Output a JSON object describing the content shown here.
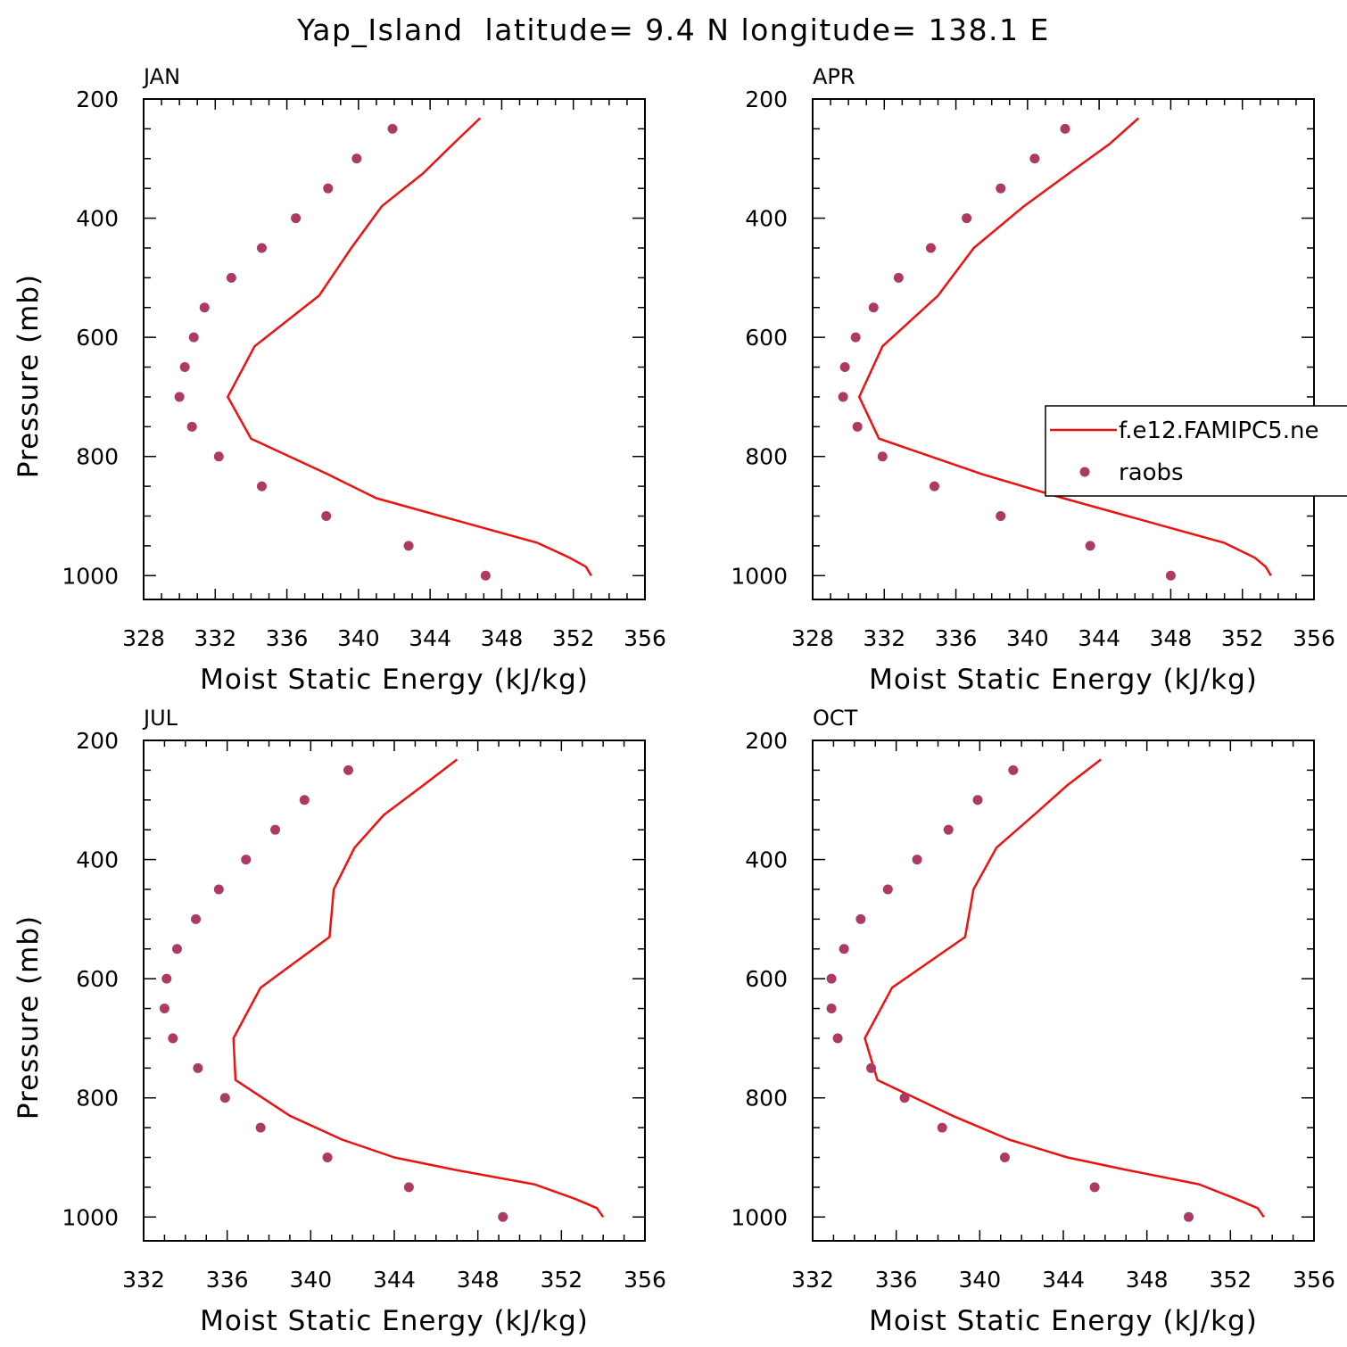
{
  "title": "Yap_Island  latitude= 9.4 N longitude= 138.1 E",
  "legend": {
    "line_label": "f.e12.FAMIPC5.ne",
    "dot_label": "raobs"
  },
  "colors": {
    "model_line": "#ee1111",
    "raobs_dots": "#ac3a64",
    "axis": "#000000"
  },
  "chart_data": [
    {
      "type": "line",
      "label": "JAN",
      "xlabel": "Moist Static Energy (kJ/kg)",
      "ylabel": "Pressure (mb)",
      "xlim": [
        328,
        356
      ],
      "ylim": [
        1040,
        200
      ],
      "xticks": [
        328,
        332,
        336,
        340,
        344,
        348,
        352,
        356
      ],
      "yticks": [
        200,
        400,
        600,
        800,
        1000
      ],
      "model": {
        "p": [
          232,
          275,
          325,
          380,
          450,
          530,
          615,
          700,
          770,
          830,
          870,
          920,
          945,
          970,
          985,
          1000
        ],
        "mse": [
          346.8,
          345.3,
          343.6,
          341.3,
          339.6,
          337.8,
          334.2,
          332.7,
          334.0,
          338.3,
          341.0,
          347.0,
          350.0,
          351.8,
          352.7,
          353.0
        ]
      },
      "raobs": {
        "p": [
          250,
          300,
          350,
          400,
          450,
          500,
          550,
          600,
          650,
          700,
          750,
          800,
          850,
          900,
          950,
          1000
        ],
        "mse": [
          341.9,
          339.9,
          338.3,
          336.5,
          334.6,
          332.9,
          331.4,
          330.8,
          330.3,
          330.0,
          330.7,
          332.2,
          334.6,
          338.2,
          342.8,
          347.1
        ]
      }
    },
    {
      "type": "line",
      "label": "APR",
      "xlabel": "Moist Static Energy (kJ/kg)",
      "ylabel": "",
      "xlim": [
        328,
        356
      ],
      "ylim": [
        1040,
        200
      ],
      "xticks": [
        328,
        332,
        336,
        340,
        344,
        348,
        352,
        356
      ],
      "yticks": [
        200,
        400,
        600,
        800,
        1000
      ],
      "model": {
        "p": [
          232,
          275,
          325,
          380,
          450,
          530,
          615,
          700,
          770,
          830,
          870,
          920,
          945,
          970,
          985,
          1000
        ],
        "mse": [
          346.2,
          344.6,
          342.3,
          339.8,
          337.0,
          335.0,
          331.9,
          330.6,
          331.7,
          337.5,
          342.0,
          348.0,
          351.0,
          352.7,
          353.3,
          353.6
        ]
      },
      "raobs": {
        "p": [
          250,
          300,
          350,
          400,
          450,
          500,
          550,
          600,
          650,
          700,
          750,
          800,
          850,
          900,
          950,
          1000
        ],
        "mse": [
          342.1,
          340.4,
          338.5,
          336.6,
          334.6,
          332.8,
          331.4,
          330.4,
          329.8,
          329.7,
          330.5,
          331.9,
          334.8,
          338.5,
          343.5,
          348.0
        ]
      }
    },
    {
      "type": "line",
      "label": "JUL",
      "xlabel": "Moist Static Energy (kJ/kg)",
      "ylabel": "Pressure (mb)",
      "xlim": [
        332,
        356
      ],
      "ylim": [
        1040,
        200
      ],
      "xticks": [
        332,
        336,
        340,
        344,
        348,
        352,
        356
      ],
      "yticks": [
        200,
        400,
        600,
        800,
        1000
      ],
      "model": {
        "p": [
          232,
          275,
          325,
          380,
          450,
          530,
          615,
          700,
          770,
          830,
          870,
          900,
          920,
          945,
          970,
          985,
          1000
        ],
        "mse": [
          347.0,
          345.4,
          343.5,
          342.1,
          341.1,
          340.9,
          337.6,
          336.3,
          336.4,
          339.0,
          341.5,
          344.0,
          346.8,
          350.7,
          352.7,
          353.7,
          354.0
        ]
      },
      "raobs": {
        "p": [
          250,
          300,
          350,
          400,
          450,
          500,
          550,
          600,
          650,
          700,
          750,
          800,
          850,
          900,
          950,
          1000
        ],
        "mse": [
          341.8,
          339.7,
          338.3,
          336.9,
          335.6,
          334.5,
          333.6,
          333.1,
          333.0,
          333.4,
          334.6,
          335.9,
          337.6,
          340.8,
          344.7,
          349.2
        ]
      }
    },
    {
      "type": "line",
      "label": "OCT",
      "xlabel": "Moist Static Energy (kJ/kg)",
      "ylabel": "",
      "xlim": [
        332,
        356
      ],
      "ylim": [
        1040,
        200
      ],
      "xticks": [
        332,
        336,
        340,
        344,
        348,
        352,
        356
      ],
      "yticks": [
        200,
        400,
        600,
        800,
        1000
      ],
      "model": {
        "p": [
          232,
          275,
          325,
          380,
          450,
          530,
          615,
          700,
          770,
          830,
          870,
          900,
          920,
          945,
          970,
          985,
          1000
        ],
        "mse": [
          345.8,
          344.2,
          342.6,
          340.8,
          339.7,
          339.3,
          335.8,
          334.5,
          335.1,
          338.7,
          341.4,
          344.2,
          346.9,
          350.5,
          352.3,
          353.3,
          353.6
        ]
      },
      "raobs": {
        "p": [
          250,
          300,
          350,
          400,
          450,
          500,
          550,
          600,
          650,
          700,
          750,
          800,
          850,
          900,
          950,
          1000
        ],
        "mse": [
          341.6,
          339.9,
          338.5,
          337.0,
          335.6,
          334.3,
          333.5,
          332.9,
          332.9,
          333.2,
          334.8,
          336.4,
          338.2,
          341.2,
          345.5,
          350.0
        ]
      }
    }
  ]
}
